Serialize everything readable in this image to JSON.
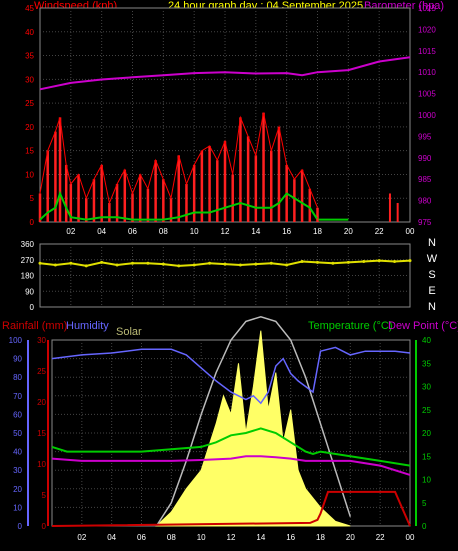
{
  "header": {
    "windspeed_label": "Windspeed (kph)",
    "title": "24 hour graph day : 04 September 2025",
    "barometer_label": "Barometer (hpa)",
    "rain_label": "Rainfall (mm)",
    "humidity_label": "Humidity",
    "solar_label": "Solar",
    "temp_label": "Temperature (°C)",
    "dew_label": "Dew Point (°C)"
  },
  "colors": {
    "wind": "#ff0000",
    "gust": "#ff2020",
    "avg_wind": "#00cc00",
    "barometer": "#cc00cc",
    "direction": "#e0e000",
    "rain": "#cc0000",
    "humidity": "#6666ff",
    "solar": "#ffff66",
    "solar_max": "#bbbbbb",
    "temperature": "#00cc00",
    "dew": "#cc00cc",
    "grid": "#444444",
    "axis_left_top": "#ff0000",
    "axis_right_top": "#cc00cc"
  },
  "chart_data": [
    {
      "type": "line",
      "name": "wind-barometer",
      "x_labels": [
        "02",
        "04",
        "06",
        "08",
        "10",
        "12",
        "14",
        "16",
        "18",
        "20",
        "22",
        "00"
      ],
      "left_axis": {
        "label": "Windspeed (kph)",
        "ticks": [
          "45",
          "40",
          "35",
          "30",
          "25",
          "20",
          "15",
          "10",
          "5",
          "0"
        ],
        "ylim": [
          0,
          45
        ]
      },
      "right_axis": {
        "label": "Barometer (hpa)",
        "ticks": [
          "1025",
          "1020",
          "1015",
          "1010",
          "1005",
          "1000",
          "995",
          "990",
          "985",
          "980",
          "975"
        ],
        "ylim": [
          975,
          1025
        ]
      },
      "series": [
        {
          "name": "Barometer",
          "x": [
            0,
            2,
            4,
            6,
            8,
            10,
            12,
            14,
            16,
            17,
            18,
            20,
            22,
            24
          ],
          "values": [
            1006,
            1007.5,
            1008.3,
            1008.8,
            1009.3,
            1009.8,
            1010,
            1009.7,
            1009.8,
            1009.3,
            1010,
            1010.5,
            1012.5,
            1013.5
          ]
        },
        {
          "name": "Wind gust",
          "x": [
            0,
            0.5,
            1,
            1.3,
            1.7,
            2,
            2.5,
            3,
            3.5,
            4,
            4.5,
            5,
            5.5,
            6,
            6.5,
            7,
            7.5,
            8,
            8.5,
            9,
            9.5,
            10,
            10.5,
            11,
            11.5,
            12,
            12.5,
            13,
            13.5,
            14,
            14.5,
            15,
            15.5,
            16,
            16.5,
            17,
            17.5,
            18
          ],
          "values": [
            6,
            15,
            19,
            22,
            12,
            8,
            10,
            5,
            9,
            12,
            4,
            8,
            11,
            6,
            10,
            7,
            13,
            9,
            5,
            14,
            8,
            12,
            15,
            16,
            13,
            17,
            10,
            22,
            18,
            14,
            23,
            15,
            20,
            12,
            9,
            11,
            7,
            3
          ]
        },
        {
          "name": "Wind average",
          "x": [
            0,
            0.5,
            1,
            1.3,
            1.7,
            2,
            3,
            4,
            5,
            6,
            7,
            8,
            9,
            10,
            11,
            12,
            13,
            14,
            15,
            15.5,
            16,
            16.5,
            17,
            17.5,
            18,
            19,
            20
          ],
          "values": [
            0.5,
            2,
            3,
            6,
            3,
            1,
            0.5,
            1,
            1,
            0.5,
            0.5,
            0.5,
            1,
            2,
            2,
            3,
            4,
            3,
            3,
            4,
            6,
            5,
            4,
            3,
            0.5,
            0.5,
            0.5
          ]
        }
      ],
      "rain_marks": {
        "x": [
          18,
          22.7,
          23.2
        ],
        "values": [
          0.8,
          6,
          4
        ]
      }
    },
    {
      "type": "scatter",
      "name": "wind-direction",
      "left_axis": {
        "ticks": [
          "360",
          "270",
          "180",
          "90",
          "0"
        ],
        "ylim": [
          0,
          360
        ]
      },
      "right_labels": [
        "N",
        "W",
        "S",
        "E",
        "N"
      ],
      "series": [
        {
          "name": "Wind direction",
          "x": [
            0,
            1,
            2,
            3,
            4,
            5,
            6,
            7,
            8,
            9,
            10,
            11,
            12,
            13,
            14,
            15,
            16,
            17,
            18,
            19,
            20,
            21,
            22,
            23,
            24
          ],
          "values": [
            250,
            240,
            250,
            235,
            255,
            240,
            250,
            250,
            245,
            235,
            240,
            250,
            245,
            240,
            245,
            250,
            240,
            260,
            255,
            250,
            255,
            260,
            265,
            260,
            265
          ]
        }
      ]
    },
    {
      "type": "line",
      "name": "rain-humidity-solar-temperature",
      "x_labels": [
        "02",
        "04",
        "06",
        "08",
        "10",
        "12",
        "14",
        "16",
        "18",
        "20",
        "22",
        "00"
      ],
      "rain_axis": {
        "label": "Rainfall (mm)",
        "ticks": [
          "30",
          "25",
          "20",
          "15",
          "10",
          "5",
          "0"
        ],
        "ylim": [
          0,
          30
        ]
      },
      "humidity_axis": {
        "label": "Humidity",
        "ticks": [
          "100",
          "90",
          "80",
          "70",
          "60",
          "50",
          "40",
          "30",
          "20",
          "10",
          "0"
        ],
        "ylim": [
          0,
          100
        ]
      },
      "temp_axis": {
        "label": "Temperature (°C)",
        "ticks": [
          "40",
          "35",
          "30",
          "25",
          "20",
          "15",
          "10",
          "5",
          "0"
        ],
        "ylim": [
          0,
          40
        ]
      },
      "series": [
        {
          "name": "Humidity",
          "x": [
            0,
            2,
            4,
            6,
            8,
            9,
            10,
            11,
            12,
            13,
            13.5,
            14,
            14.5,
            15,
            15.5,
            16,
            16.5,
            17,
            17.5,
            18,
            19,
            20,
            21,
            22,
            23,
            24
          ],
          "values": [
            90,
            92,
            93,
            95,
            95,
            92,
            85,
            78,
            72,
            68,
            70,
            66,
            72,
            86,
            90,
            82,
            78,
            75,
            72,
            94,
            96,
            92,
            94,
            94,
            94,
            93
          ]
        },
        {
          "name": "Temperature",
          "x": [
            0,
            1,
            2,
            4,
            6,
            8,
            10,
            11,
            12,
            13,
            14,
            15,
            16,
            17,
            17.5,
            18,
            20,
            22,
            24
          ],
          "values": [
            17,
            16,
            16,
            16,
            16,
            16.5,
            17,
            18,
            19.5,
            20,
            21,
            20,
            18,
            16,
            15.5,
            16,
            15,
            14,
            13
          ]
        },
        {
          "name": "Dew Point",
          "x": [
            0,
            2,
            4,
            6,
            8,
            10,
            12,
            13,
            14,
            15,
            16,
            17,
            18,
            20,
            22,
            24
          ],
          "values": [
            14.5,
            14,
            14,
            14,
            14,
            14.2,
            14.5,
            15,
            15,
            14.8,
            14.5,
            14,
            14,
            14,
            13,
            11
          ]
        },
        {
          "name": "Rainfall",
          "x": [
            0,
            17.3,
            17.8,
            18,
            18.5,
            20,
            23,
            24
          ],
          "values": [
            0,
            0.5,
            1,
            2,
            5.5,
            5.5,
            5.5,
            0
          ]
        },
        {
          "name": "Solar max",
          "x": [
            7,
            8,
            9,
            10,
            11,
            12,
            13,
            14,
            15,
            16,
            17,
            18,
            19,
            20
          ],
          "values": [
            0,
            5,
            14,
            24,
            33,
            40,
            44,
            45,
            44,
            40,
            32,
            22,
            12,
            2
          ]
        },
        {
          "name": "Solar",
          "x": [
            7,
            8,
            9,
            10,
            10.5,
            11,
            11.5,
            12,
            12.5,
            13,
            13.5,
            14,
            14.5,
            15,
            15.5,
            16,
            16.5,
            17,
            18,
            19,
            20
          ],
          "values": [
            0,
            3,
            8,
            12,
            17,
            22,
            28,
            24,
            35,
            20,
            30,
            42,
            25,
            33,
            18,
            25,
            12,
            8,
            4,
            1,
            0
          ]
        }
      ]
    }
  ]
}
